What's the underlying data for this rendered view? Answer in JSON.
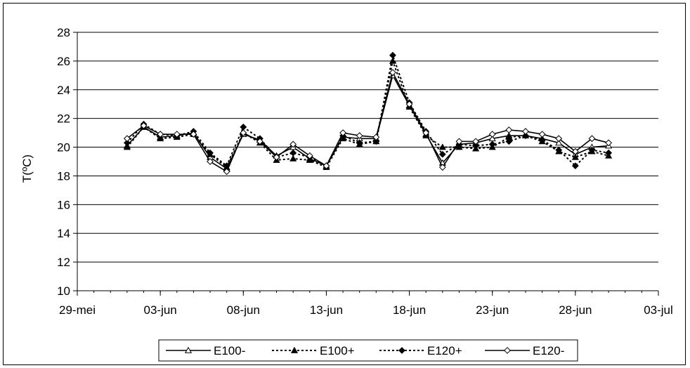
{
  "chart_data": {
    "type": "line",
    "title": "",
    "xlabel": "",
    "ylabel": "T(ºC)",
    "ylim": [
      10,
      28
    ],
    "y_ticks": [
      10,
      12,
      14,
      16,
      18,
      20,
      22,
      24,
      26,
      28
    ],
    "x_range": [
      "2003-05-29",
      "2003-07-03"
    ],
    "x_ticks": [
      {
        "date": "2003-05-29",
        "label": "29-mei"
      },
      {
        "date": "2003-06-03",
        "label": "03-jun"
      },
      {
        "date": "2003-06-08",
        "label": "08-jun"
      },
      {
        "date": "2003-06-13",
        "label": "13-jun"
      },
      {
        "date": "2003-06-18",
        "label": "18-jun"
      },
      {
        "date": "2003-06-23",
        "label": "23-jun"
      },
      {
        "date": "2003-06-28",
        "label": "28-jun"
      },
      {
        "date": "2003-07-03",
        "label": "03-jul"
      }
    ],
    "grid": "horizontal",
    "legend_position": "bottom",
    "x": [
      "2003-06-01",
      "2003-06-02",
      "2003-06-03",
      "2003-06-04",
      "2003-06-05",
      "2003-06-06",
      "2003-06-07",
      "2003-06-08",
      "2003-06-09",
      "2003-06-10",
      "2003-06-11",
      "2003-06-12",
      "2003-06-13",
      "2003-06-14",
      "2003-06-15",
      "2003-06-16",
      "2003-06-17",
      "2003-06-18",
      "2003-06-19",
      "2003-06-20",
      "2003-06-21",
      "2003-06-22",
      "2003-06-23",
      "2003-06-24",
      "2003-06-25",
      "2003-06-26",
      "2003-06-27",
      "2003-06-28",
      "2003-06-29",
      "2003-06-30"
    ],
    "series": [
      {
        "name": "E100-",
        "style": "solid",
        "marker": "triangle-open",
        "values": [
          20.1,
          21.4,
          20.7,
          20.8,
          21.0,
          19.3,
          18.5,
          20.9,
          20.5,
          19.4,
          20.0,
          19.2,
          18.7,
          20.7,
          20.6,
          20.6,
          25.0,
          22.9,
          20.9,
          18.9,
          20.2,
          20.3,
          20.6,
          20.8,
          20.8,
          20.6,
          20.3,
          19.5,
          20.0,
          20.1
        ]
      },
      {
        "name": "E100+",
        "style": "dotted",
        "marker": "triangle-filled",
        "values": [
          20.0,
          21.4,
          20.6,
          20.7,
          20.9,
          19.5,
          18.6,
          21.0,
          20.3,
          19.1,
          19.2,
          19.1,
          18.6,
          20.6,
          20.2,
          20.4,
          26.0,
          22.8,
          20.8,
          20.0,
          20.0,
          19.9,
          20.0,
          20.7,
          20.8,
          20.4,
          19.7,
          19.3,
          19.7,
          19.4
        ]
      },
      {
        "name": "E120+",
        "style": "dotted",
        "marker": "diamond-filled",
        "values": [
          20.3,
          21.6,
          20.9,
          20.8,
          21.1,
          19.6,
          18.7,
          21.4,
          20.6,
          19.3,
          19.6,
          19.3,
          18.7,
          20.8,
          20.3,
          20.4,
          26.4,
          23.1,
          21.1,
          19.5,
          20.2,
          20.1,
          20.2,
          20.4,
          20.8,
          20.5,
          19.8,
          18.7,
          19.8,
          19.6
        ]
      },
      {
        "name": "E120-",
        "style": "solid",
        "marker": "diamond-open",
        "values": [
          20.6,
          21.5,
          20.9,
          20.9,
          20.9,
          19.0,
          18.3,
          21.0,
          20.4,
          19.3,
          20.2,
          19.4,
          18.7,
          21.0,
          20.8,
          20.7,
          25.2,
          23.0,
          21.0,
          18.6,
          20.4,
          20.4,
          20.9,
          21.2,
          21.1,
          20.9,
          20.6,
          19.7,
          20.6,
          20.3
        ]
      }
    ]
  }
}
